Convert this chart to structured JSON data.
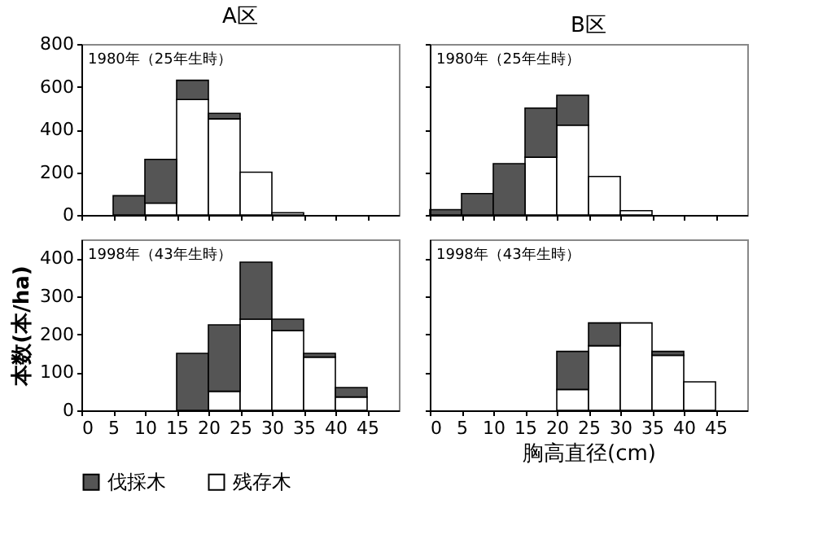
{
  "chart_data": [
    {
      "type": "bar",
      "title": "A区",
      "annotations": [
        "1980年（25年生時）"
      ],
      "x": [
        2.5,
        7.5,
        12.5,
        17.5,
        22.5,
        27.5,
        32.5,
        37.5,
        42.5,
        47.5
      ],
      "stacked": true,
      "xlim": [
        0,
        50
      ],
      "xticks": [
        0,
        5,
        10,
        15,
        20,
        25,
        30,
        35,
        40,
        45
      ],
      "ylim": [
        0,
        800
      ],
      "yticks": [
        0,
        200,
        400,
        600,
        800
      ],
      "tick_labels": "y",
      "legend": "bottom",
      "series": [
        {
          "name": "残存木",
          "color": "#ffffff",
          "values": [
            0,
            0,
            55,
            540,
            450,
            200,
            10,
            0,
            0,
            0
          ]
        },
        {
          "name": "伐採木",
          "color": "#555555",
          "values": [
            0,
            90,
            205,
            90,
            25,
            0,
            0,
            0,
            0,
            0
          ]
        }
      ]
    },
    {
      "type": "bar",
      "title": "B区",
      "annotations": [
        "1980年（25年生時）"
      ],
      "x": [
        2.5,
        7.5,
        12.5,
        17.5,
        22.5,
        27.5,
        32.5,
        37.5,
        42.5,
        47.5
      ],
      "stacked": true,
      "xlim": [
        0,
        50
      ],
      "xticks": [
        0,
        5,
        10,
        15,
        20,
        25,
        30,
        35,
        40,
        45
      ],
      "ylim": [
        0,
        800
      ],
      "yticks": [
        0,
        200,
        400,
        600,
        800
      ],
      "tick_labels": false,
      "legend": "bottom",
      "series": [
        {
          "name": "残存木",
          "color": "#ffffff",
          "values": [
            0,
            0,
            0,
            270,
            420,
            180,
            20,
            0,
            0,
            0
          ]
        },
        {
          "name": "伐採木",
          "color": "#555555",
          "values": [
            25,
            100,
            240,
            230,
            140,
            0,
            0,
            0,
            0,
            0
          ]
        }
      ]
    },
    {
      "type": "bar",
      "ylabel": "本数(本/ha)",
      "annotations": [
        "1998年（43年生時）"
      ],
      "x": [
        2.5,
        7.5,
        12.5,
        17.5,
        22.5,
        27.5,
        32.5,
        37.5,
        42.5,
        47.5
      ],
      "stacked": true,
      "xlim": [
        0,
        50
      ],
      "xticks": [
        0,
        5,
        10,
        15,
        20,
        25,
        30,
        35,
        40,
        45
      ],
      "ylim": [
        0,
        450
      ],
      "yticks": [
        0,
        100,
        200,
        300,
        400
      ],
      "legend": "bottom",
      "series": [
        {
          "name": "残存木",
          "color": "#ffffff",
          "values": [
            0,
            0,
            0,
            0,
            50,
            240,
            210,
            140,
            35,
            0
          ]
        },
        {
          "name": "伐採木",
          "color": "#555555",
          "values": [
            0,
            0,
            0,
            150,
            175,
            150,
            30,
            10,
            25,
            0
          ]
        }
      ]
    },
    {
      "type": "bar",
      "xlabel": "胸高直径(cm)",
      "annotations": [
        "1998年（43年生時）"
      ],
      "x": [
        2.5,
        7.5,
        12.5,
        17.5,
        22.5,
        27.5,
        32.5,
        37.5,
        42.5,
        47.5
      ],
      "stacked": true,
      "xlim": [
        0,
        50
      ],
      "xticks": [
        0,
        5,
        10,
        15,
        20,
        25,
        30,
        35,
        40,
        45
      ],
      "ylim": [
        0,
        450
      ],
      "yticks": [
        0,
        100,
        200,
        300,
        400
      ],
      "tick_labels": "x",
      "legend": "bottom",
      "series": [
        {
          "name": "残存木",
          "color": "#ffffff",
          "values": [
            0,
            0,
            0,
            0,
            55,
            170,
            230,
            145,
            75,
            0
          ]
        },
        {
          "name": "伐採木",
          "color": "#555555",
          "values": [
            0,
            0,
            0,
            0,
            100,
            60,
            0,
            10,
            0,
            0
          ]
        }
      ]
    }
  ]
}
